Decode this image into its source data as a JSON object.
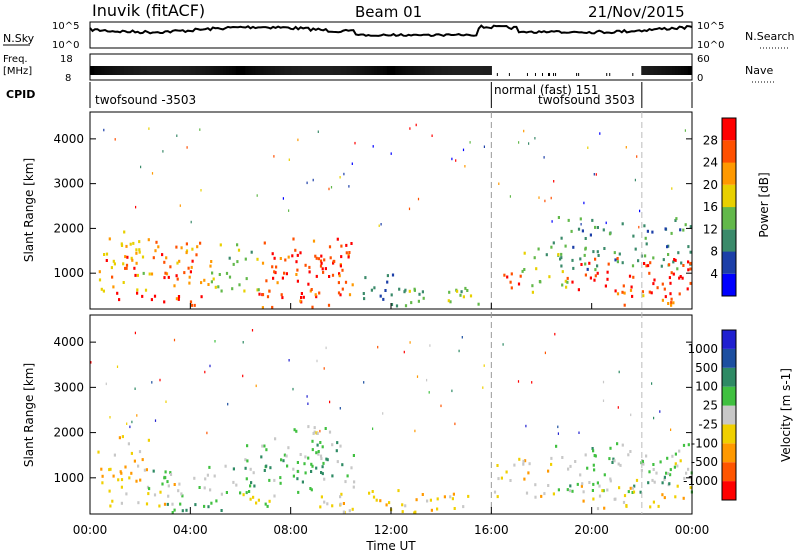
{
  "header": {
    "station": "Inuvik (fitACF)",
    "beam": "Beam 01",
    "date": "21/Nov/2015"
  },
  "strip_labels": {
    "nsky": "N.Sky",
    "nsky_ticks": [
      "10^5",
      "10^0"
    ],
    "nsearch": "N.Search",
    "freq": "Freq.",
    "freq_unit": "[MHz]",
    "freq_ticks": [
      "18",
      "8"
    ],
    "nave": "Nave",
    "nave_ticks": [
      "60",
      "0"
    ],
    "cpid": "CPID"
  },
  "cpid_segments": [
    {
      "label": "twofsound -3503",
      "start_h": 0,
      "end_h": 16
    },
    {
      "label": "normal (fast) 151",
      "start_h": 16,
      "end_h": 22
    },
    {
      "label": "twofsound 3503",
      "start_h": 16,
      "end_h": 22
    }
  ],
  "cpid_boundaries_h": [
    16,
    22
  ],
  "colors": {
    "power": [
      "#0000ff",
      "#1c3fa8",
      "#3a8a6a",
      "#62b84a",
      "#e8d000",
      "#ff9900",
      "#ff5000",
      "#ff0000"
    ],
    "velocity": [
      "#ff0000",
      "#ff5500",
      "#ff9900",
      "#f0d000",
      "#c8c8c8",
      "#40c040",
      "#2e8a64",
      "#1c4fa0",
      "#2020d0"
    ]
  },
  "chart_data": [
    {
      "type": "heatmap",
      "title": "",
      "xlabel": "Time UT",
      "ylabel": "Slant Range [km]",
      "xlim_h": [
        0,
        24
      ],
      "ylim": [
        200,
        4600
      ],
      "x_ticks": [
        "00:00",
        "04:00",
        "08:00",
        "12:00",
        "16:00",
        "20:00",
        "00:00"
      ],
      "y_ticks": [
        1000,
        2000,
        3000,
        4000
      ],
      "colorbar": {
        "label": "Power [dB]",
        "ticks": [
          4,
          8,
          12,
          16,
          20,
          24,
          28
        ],
        "range": [
          0,
          30
        ]
      },
      "regions": [
        {
          "t0": 0.1,
          "t1": 2.2,
          "r0": 600,
          "r1": 2000,
          "val": 18
        },
        {
          "t0": 0.6,
          "t1": 1.8,
          "r0": 800,
          "r1": 1400,
          "val": 26
        },
        {
          "t0": 2.2,
          "t1": 4.8,
          "r0": 700,
          "r1": 1800,
          "val": 22
        },
        {
          "t0": 2.8,
          "t1": 4.2,
          "r0": 900,
          "r1": 1500,
          "val": 27
        },
        {
          "t0": 1.0,
          "t1": 4.5,
          "r0": 250,
          "r1": 600,
          "val": 26
        },
        {
          "t0": 4.8,
          "t1": 6.8,
          "r0": 600,
          "r1": 1700,
          "val": 14
        },
        {
          "t0": 6.8,
          "t1": 10.5,
          "r0": 500,
          "r1": 1850,
          "val": 25
        },
        {
          "t0": 7.2,
          "t1": 10.0,
          "r0": 750,
          "r1": 1500,
          "val": 28
        },
        {
          "t0": 6.5,
          "t1": 10.0,
          "r0": 250,
          "r1": 600,
          "val": 24
        },
        {
          "t0": 10.5,
          "t1": 13.5,
          "r0": 300,
          "r1": 1000,
          "val": 9
        },
        {
          "t0": 12.5,
          "t1": 15.5,
          "r0": 250,
          "r1": 700,
          "val": 14
        },
        {
          "t0": 16.0,
          "t1": 17.3,
          "r0": 700,
          "r1": 1200,
          "val": 26
        },
        {
          "t0": 17.2,
          "t1": 19.0,
          "r0": 600,
          "r1": 1800,
          "val": 14
        },
        {
          "t0": 18.6,
          "t1": 24.0,
          "r0": 1100,
          "r1": 2300,
          "val": 10
        },
        {
          "t0": 19.0,
          "t1": 24.0,
          "r0": 450,
          "r1": 1400,
          "val": 27
        },
        {
          "t0": 21.0,
          "t1": 23.5,
          "r0": 300,
          "r1": 800,
          "val": 21
        }
      ]
    },
    {
      "type": "heatmap",
      "title": "",
      "xlabel": "Time UT",
      "ylabel": "Slant Range [km]",
      "xlim_h": [
        0,
        24
      ],
      "ylim": [
        200,
        4600
      ],
      "x_ticks": [
        "00:00",
        "04:00",
        "08:00",
        "12:00",
        "16:00",
        "20:00",
        "00:00"
      ],
      "y_ticks": [
        1000,
        2000,
        3000,
        4000
      ],
      "colorbar": {
        "label": "Velocity [m s-1]",
        "ticks": [
          1000,
          500,
          100,
          25,
          -25,
          -100,
          -500,
          -1000
        ],
        "range": [
          -1200,
          1200
        ]
      },
      "regions": [
        {
          "t0": 0.1,
          "t1": 2.4,
          "r0": 900,
          "r1": 2000,
          "val": -350
        },
        {
          "t0": 0.5,
          "t1": 3.5,
          "r0": 400,
          "r1": 900,
          "val": -200
        },
        {
          "t0": 2.3,
          "t1": 6.5,
          "r0": 600,
          "r1": 1300,
          "val": 150
        },
        {
          "t0": 3.0,
          "t1": 6.0,
          "r0": 250,
          "r1": 600,
          "val": 300
        },
        {
          "t0": 6.0,
          "t1": 10.5,
          "r0": 700,
          "r1": 1900,
          "val": 200
        },
        {
          "t0": 6.5,
          "t1": 9.5,
          "r0": 1000,
          "r1": 1500,
          "val": 400
        },
        {
          "t0": 6.0,
          "t1": 8.0,
          "r0": 300,
          "r1": 700,
          "val": 0
        },
        {
          "t0": 8.0,
          "t1": 9.8,
          "r0": 1800,
          "r1": 2350,
          "val": 0
        },
        {
          "t0": 9.0,
          "t1": 12.5,
          "r0": 250,
          "r1": 750,
          "val": -150
        },
        {
          "t0": 11.0,
          "t1": 15.5,
          "r0": 250,
          "r1": 700,
          "val": -300
        },
        {
          "t0": 16.0,
          "t1": 18.5,
          "r0": 600,
          "r1": 1500,
          "val": -200
        },
        {
          "t0": 18.5,
          "t1": 24.0,
          "r0": 700,
          "r1": 1800,
          "val": 200
        },
        {
          "t0": 19.5,
          "t1": 24.0,
          "r0": 350,
          "r1": 1000,
          "val": -250
        },
        {
          "t0": 21.8,
          "t1": 24.0,
          "r0": 1000,
          "r1": 1500,
          "val": 0
        }
      ]
    }
  ]
}
